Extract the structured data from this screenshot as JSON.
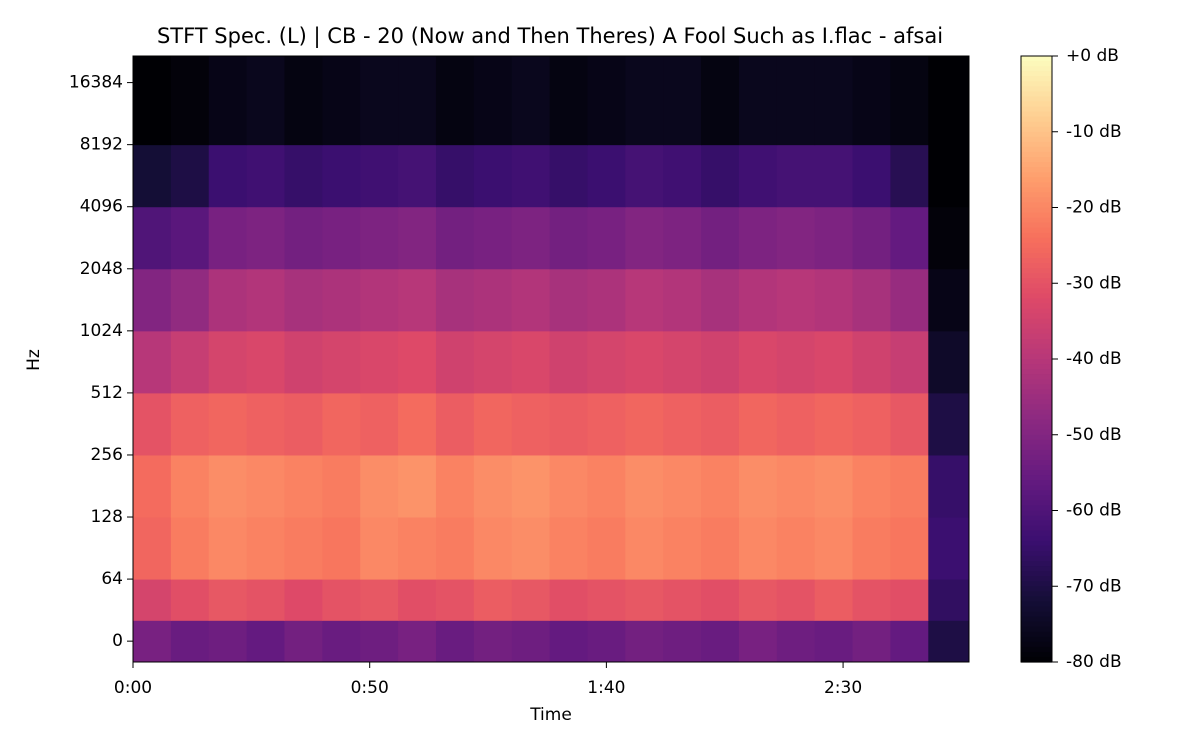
{
  "chart_data": {
    "type": "heatmap",
    "title": "STFT Spec. (L) | CB - 20 (Now and Then Theres) A Fool Such as I.flac - afsai",
    "x_label": "Time",
    "y_label": "Hz",
    "xlim": [
      0,
      176.6
    ],
    "xticks": [
      {
        "value": 0,
        "label": "0:00"
      },
      {
        "value": 50,
        "label": "0:50"
      },
      {
        "value": 100,
        "label": "1:40"
      },
      {
        "value": 150,
        "label": "2:30"
      }
    ],
    "ylim": [
      -21.5,
      22050
    ],
    "yscale": "symlog",
    "linthresh": 64,
    "logbase": 2,
    "yticks": [
      0,
      64,
      128,
      256,
      512,
      1024,
      2048,
      4096,
      8192,
      16384
    ],
    "colormap": "magma",
    "clim": [
      -80,
      0
    ],
    "colorbar_ticks": [
      {
        "value": 0,
        "label": "+0 dB"
      },
      {
        "value": -10,
        "label": "-10 dB"
      },
      {
        "value": -20,
        "label": "-20 dB"
      },
      {
        "value": -30,
        "label": "-30 dB"
      },
      {
        "value": -40,
        "label": "-40 dB"
      },
      {
        "value": -50,
        "label": "-50 dB"
      },
      {
        "value": -60,
        "label": "-60 dB"
      },
      {
        "value": -70,
        "label": "-70 dB"
      },
      {
        "value": -80,
        "label": "-80 dB"
      }
    ],
    "time_edges": [
      0,
      8,
      16,
      24,
      32,
      40,
      48,
      56,
      64,
      72,
      80,
      88,
      96,
      104,
      112,
      120,
      128,
      136,
      144,
      152,
      160,
      168,
      176.6
    ],
    "freq_edges": [
      -21.5,
      21.5,
      64,
      128,
      256,
      512,
      1024,
      2048,
      4096,
      8192,
      22050
    ],
    "values": [
      [
        -52,
        -55,
        -54,
        -56,
        -53,
        -55,
        -54,
        -52,
        -55,
        -53,
        -54,
        -56,
        -55,
        -53,
        -54,
        -55,
        -52,
        -54,
        -55,
        -53,
        -56,
        -70
      ],
      [
        -34,
        -31,
        -29,
        -30,
        -32,
        -30,
        -29,
        -31,
        -30,
        -28,
        -29,
        -31,
        -30,
        -29,
        -30,
        -31,
        -29,
        -30,
        -28,
        -30,
        -31,
        -66
      ],
      [
        -26,
        -22,
        -20,
        -21,
        -22,
        -23,
        -20,
        -21,
        -22,
        -20,
        -19,
        -21,
        -22,
        -20,
        -21,
        -22,
        -20,
        -21,
        -20,
        -22,
        -23,
        -64
      ],
      [
        -25,
        -21,
        -19,
        -20,
        -21,
        -22,
        -19,
        -18,
        -21,
        -19,
        -18,
        -20,
        -21,
        -19,
        -20,
        -21,
        -19,
        -20,
        -19,
        -21,
        -22,
        -65
      ],
      [
        -30,
        -27,
        -26,
        -27,
        -28,
        -26,
        -27,
        -25,
        -28,
        -26,
        -27,
        -28,
        -27,
        -26,
        -27,
        -28,
        -26,
        -27,
        -26,
        -27,
        -29,
        -70
      ],
      [
        -40,
        -37,
        -34,
        -33,
        -35,
        -34,
        -33,
        -32,
        -35,
        -34,
        -33,
        -35,
        -34,
        -33,
        -34,
        -35,
        -33,
        -34,
        -33,
        -35,
        -37,
        -74
      ],
      [
        -50,
        -47,
        -42,
        -41,
        -43,
        -42,
        -41,
        -40,
        -43,
        -42,
        -41,
        -43,
        -42,
        -40,
        -41,
        -43,
        -41,
        -40,
        -41,
        -43,
        -46,
        -77
      ],
      [
        -60,
        -58,
        -52,
        -51,
        -53,
        -52,
        -51,
        -50,
        -53,
        -52,
        -51,
        -53,
        -52,
        -50,
        -51,
        -53,
        -51,
        -50,
        -51,
        -53,
        -56,
        -79
      ],
      [
        -72,
        -70,
        -64,
        -63,
        -65,
        -64,
        -63,
        -62,
        -65,
        -64,
        -63,
        -65,
        -64,
        -62,
        -63,
        -65,
        -63,
        -62,
        -62,
        -64,
        -68,
        -80
      ],
      [
        -80,
        -79,
        -77,
        -76,
        -78,
        -77,
        -76,
        -76,
        -78,
        -77,
        -76,
        -78,
        -77,
        -76,
        -76,
        -78,
        -76,
        -76,
        -76,
        -77,
        -78,
        -80
      ]
    ]
  }
}
